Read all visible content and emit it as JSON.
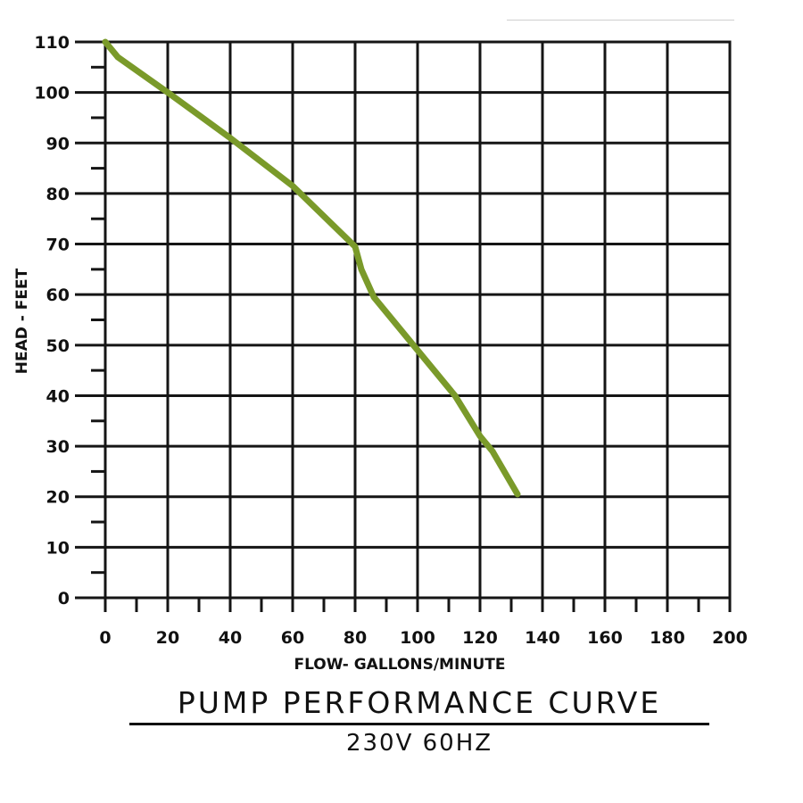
{
  "chart_data": {
    "type": "line",
    "title": "PUMP PERFORMANCE CURVE",
    "subtitle": "230V 60HZ",
    "xlabel": "FLOW- GALLONS/MINUTE",
    "ylabel": "HEAD - FEET",
    "xlim": [
      0,
      200
    ],
    "ylim": [
      0,
      110
    ],
    "x_ticks": [
      "0",
      "20",
      "40",
      "60",
      "80",
      "100",
      "120",
      "140",
      "160",
      "180",
      "200"
    ],
    "y_ticks": [
      "0",
      "10",
      "20",
      "30",
      "40",
      "50",
      "60",
      "70",
      "80",
      "90",
      "100",
      "110"
    ],
    "grid": true,
    "series_color": "#7a9a2a",
    "series": [
      {
        "x": [
          0,
          4,
          20,
          40,
          60,
          70,
          80,
          82,
          86,
          100,
          112,
          120,
          124,
          132
        ],
        "y": [
          110,
          107,
          100,
          91,
          81.5,
          75.5,
          69.5,
          65,
          59.5,
          49,
          40,
          32,
          29,
          20.5
        ]
      }
    ]
  }
}
